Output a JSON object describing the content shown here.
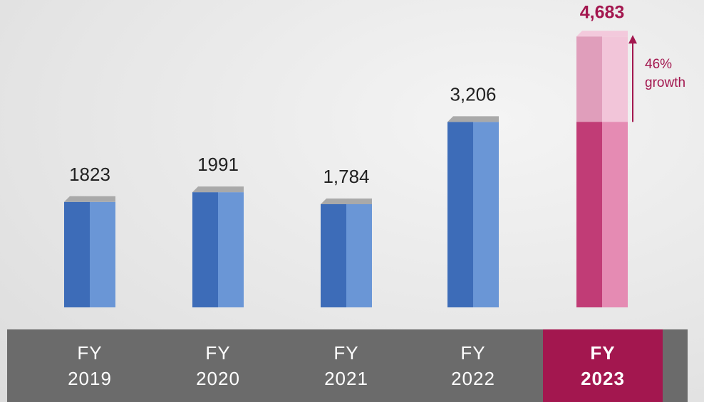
{
  "chart_data": {
    "type": "bar",
    "categories": [
      "FY 2019",
      "FY 2020",
      "FY 2021",
      "FY 2022",
      "FY 2023"
    ],
    "values": [
      1823,
      1991,
      1784,
      3206,
      4683
    ],
    "value_labels": [
      "1823",
      "1991",
      "1,784",
      "3,206",
      "4,683"
    ],
    "colors": [
      "#4a7bc6",
      "#4a7bc6",
      "#4a7bc6",
      "#4a7bc6",
      "#c8487f"
    ],
    "highlight_color": "#a3174f",
    "annotation": "46% growth"
  }
}
